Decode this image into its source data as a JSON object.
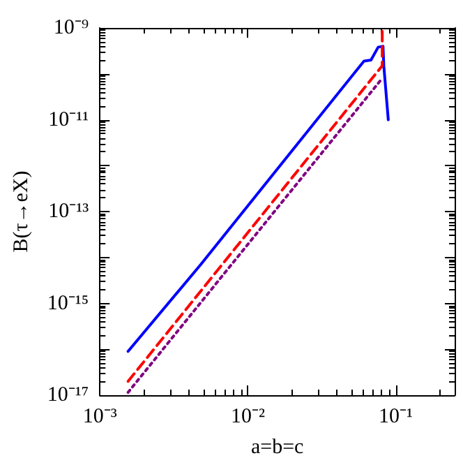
{
  "chart_data": {
    "type": "line",
    "xlabel": "a=b=c",
    "ylabel": "B(τ→eX)",
    "log": "xy",
    "grid": false,
    "marker": "none",
    "xlim": [
      0.001,
      0.25
    ],
    "xticks": [
      {
        "value": 0.001,
        "label": "10⁻³"
      },
      {
        "value": 0.01,
        "label": "10⁻²"
      },
      {
        "value": 0.1,
        "label": "10⁻¹"
      }
    ],
    "ylim": [
      1e-17,
      1e-09
    ],
    "yticks": [
      {
        "value": 1e-17,
        "label": "10⁻¹⁷"
      },
      {
        "value": 1e-16,
        "label": null
      },
      {
        "value": 1e-15,
        "label": "10⁻¹⁵"
      },
      {
        "value": 1e-14,
        "label": null
      },
      {
        "value": 1e-13,
        "label": "10⁻¹³"
      },
      {
        "value": 1e-12,
        "label": null
      },
      {
        "value": 1e-11,
        "label": "10⁻¹¹"
      },
      {
        "value": 1e-10,
        "label": null
      },
      {
        "value": 1e-09,
        "label": "10⁻⁹"
      }
    ],
    "series": [
      {
        "color": "#0000ff",
        "line_style": "solid",
        "x": [
          0.00155,
          0.0048,
          0.061,
          0.068,
          0.076,
          0.082,
          0.083,
          0.089
        ],
        "values": [
          9e-17,
          7e-15,
          1.9e-10,
          2e-10,
          3.8e-10,
          4e-10,
          1.5e-10,
          1e-11
        ]
      },
      {
        "color": "#ff0000",
        "line_style": "dashed",
        "x": [
          0.00155,
          0.081,
          0.081
        ],
        "values": [
          2e-17,
          1.5e-10,
          1e-09
        ]
      },
      {
        "color": "#800080",
        "line_style": "dotted",
        "x": [
          0.00155,
          0.081
        ],
        "values": [
          1.15e-17,
          8e-11
        ]
      }
    ]
  }
}
